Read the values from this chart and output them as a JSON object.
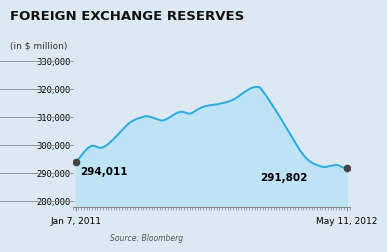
{
  "title": "FOREIGN EXCHANGE RESERVES",
  "subtitle": "(in $ million)",
  "source": "Source: Bloomberg",
  "x_labels": [
    "Jan 7, 2011",
    "May 11, 2012"
  ],
  "y_ticks": [
    280000,
    290000,
    300000,
    310000,
    320000,
    330000
  ],
  "y_tick_labels": [
    "280,000",
    "290,000",
    "300,000",
    "310,000",
    "320,000",
    "330,000"
  ],
  "ylim": [
    278000,
    334000
  ],
  "line_color": "#29ABE2",
  "fill_color": "#bee3f5",
  "dot_color": "#444444",
  "bg_color": "#dce8f2",
  "annotation_color": "#000000",
  "data_x": [
    0,
    1,
    2,
    3,
    4,
    5,
    6,
    7,
    8,
    9,
    10,
    11,
    12,
    13,
    14,
    15,
    16,
    17,
    18,
    19,
    20,
    21,
    22,
    23,
    24,
    25,
    26,
    27,
    28,
    29,
    30,
    31,
    32,
    33,
    34,
    35,
    36,
    37,
    38,
    39,
    40,
    41,
    42,
    43,
    44,
    45,
    46,
    47,
    48,
    49,
    50,
    51,
    52,
    53,
    54,
    55,
    56,
    57,
    58,
    59,
    60,
    61,
    62,
    63,
    64,
    65,
    66,
    67,
    68,
    69,
    70,
    71,
    72,
    73,
    74,
    75,
    76,
    77,
    78,
    79,
    80,
    81,
    82,
    83,
    84,
    85,
    86,
    87,
    88,
    89,
    90,
    91,
    92,
    93,
    94,
    95,
    96,
    97,
    98,
    99,
    100
  ],
  "data_y": [
    294011,
    295000,
    296200,
    297400,
    298500,
    299300,
    299800,
    299700,
    299300,
    299000,
    299200,
    299700,
    300400,
    301300,
    302200,
    303200,
    304200,
    305200,
    306200,
    307200,
    308000,
    308600,
    309100,
    309500,
    309800,
    310100,
    310300,
    310200,
    309900,
    309600,
    309200,
    308900,
    308700,
    309000,
    309500,
    310100,
    310700,
    311300,
    311700,
    311900,
    311700,
    311400,
    311100,
    311500,
    312100,
    312700,
    313200,
    313600,
    313900,
    314100,
    314200,
    314400,
    314500,
    314700,
    314900,
    315100,
    315400,
    315700,
    316100,
    316700,
    317300,
    318000,
    318700,
    319300,
    319900,
    320400,
    320600,
    320700,
    320500,
    319200,
    317900,
    316500,
    315000,
    313500,
    312000,
    310500,
    308900,
    307300,
    305700,
    304100,
    302500,
    300900,
    299300,
    297800,
    296500,
    295400,
    294500,
    293800,
    293300,
    292900,
    292600,
    292300,
    292200,
    292400,
    292600,
    292800,
    293000,
    292800,
    292300,
    291900,
    291802
  ]
}
